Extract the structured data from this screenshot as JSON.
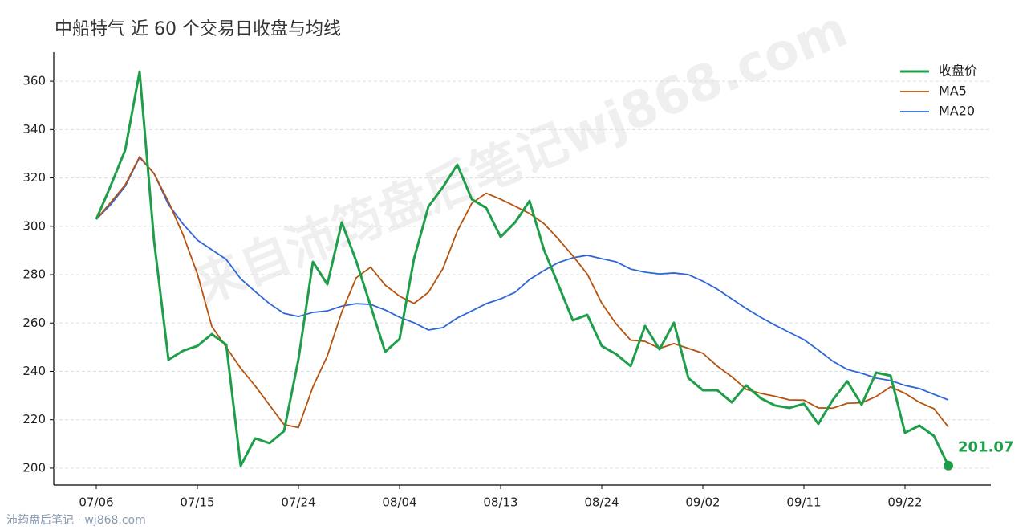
{
  "chart_data": {
    "type": "line",
    "title": "中船特气 近 60 个交易日收盘与均线",
    "watermark": "来自沛筠盘后笔记wj868.com",
    "footer": "沛筠盘后笔记 · wj868.com",
    "categories": [
      "07/06",
      null,
      null,
      null,
      null,
      null,
      null,
      "07/15",
      null,
      null,
      null,
      null,
      null,
      null,
      "07/24",
      null,
      null,
      null,
      null,
      null,
      null,
      "08/04",
      null,
      null,
      null,
      null,
      null,
      null,
      "08/13",
      null,
      null,
      null,
      null,
      null,
      null,
      "08/24",
      null,
      null,
      null,
      null,
      null,
      null,
      "09/02",
      null,
      null,
      null,
      null,
      null,
      null,
      "09/11",
      null,
      null,
      null,
      null,
      null,
      null,
      "09/22",
      null,
      null,
      null
    ],
    "series": [
      {
        "name": "收盘价",
        "color": "#1f9e4a",
        "width": 3,
        "values": [
          302.9,
          316.8,
          331.5,
          364,
          294,
          244.8,
          248.5,
          250.5,
          255.4,
          251,
          201,
          212.3,
          210.3,
          215.3,
          245,
          285.3,
          276,
          301.6,
          285.6,
          267,
          248.1,
          253.4,
          286.6,
          308.2,
          316.2,
          325.5,
          311.2,
          307.6,
          295.6,
          301.6,
          310.5,
          290.3,
          275.7,
          261.1,
          263.4,
          250.5,
          247.1,
          242.2,
          258.8,
          249.1,
          260.1,
          237.2,
          232.2,
          232.2,
          227.2,
          234.2,
          228.9,
          225.9,
          224.9,
          226.6,
          218.3,
          228.2,
          235.9,
          226.2,
          239.5,
          238.2,
          214.6,
          217.6,
          213.3,
          201.07
        ]
      },
      {
        "name": "MA5",
        "color": "#b5530f",
        "width": 1.8,
        "values": [
          302.9,
          309.9,
          317.1,
          328.8,
          321.8,
          310.2,
          296.6,
          280.4,
          258.6,
          250.0,
          241.3,
          234.0,
          226.0,
          218.0,
          216.8,
          233.6,
          246.4,
          264.6,
          278.7,
          283.1,
          275.7,
          271.1,
          268.1,
          272.7,
          282.5,
          298.0,
          309.5,
          313.7,
          311.2,
          308.3,
          305.3,
          301.1,
          294.7,
          287.8,
          280.2,
          268.2,
          259.6,
          252.9,
          252.4,
          249.5,
          251.5,
          249.5,
          247.5,
          242.2,
          237.8,
          232.6,
          230.9,
          229.7,
          228.2,
          228.1,
          224.9,
          224.8,
          226.8,
          227.0,
          229.6,
          233.6,
          230.9,
          227.2,
          224.6,
          217.0
        ]
      },
      {
        "name": "MA20",
        "color": "#2f67d8",
        "width": 1.8,
        "values": [
          302.9,
          309,
          316.5,
          328.5,
          321.8,
          309,
          301,
          294.3,
          290.3,
          286.3,
          278.3,
          273,
          268,
          264,
          262.7,
          264.4,
          265,
          267,
          268,
          267.7,
          265.4,
          262.4,
          260.1,
          257.1,
          258.1,
          262.1,
          265,
          268,
          270,
          272.7,
          278,
          281.7,
          285,
          287,
          288,
          286.6,
          285.3,
          282.3,
          281,
          280.3,
          280.7,
          280,
          277.3,
          274,
          270,
          266,
          262.4,
          259.1,
          256.1,
          253.1,
          248.8,
          244.2,
          240.8,
          239.2,
          237.2,
          236.2,
          234.2,
          232.9,
          230.5,
          228.2
        ]
      }
    ],
    "ylim": [
      193,
      372
    ],
    "yticks": [
      200,
      220,
      240,
      260,
      280,
      300,
      320,
      340,
      360
    ],
    "grid": true,
    "legend": "upper right"
  }
}
